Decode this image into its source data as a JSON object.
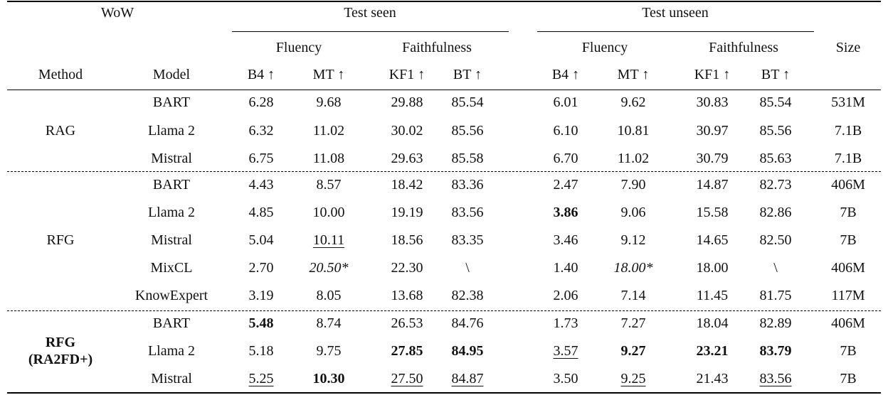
{
  "header": {
    "dataset": "WoW",
    "test_seen": "Test seen",
    "test_unseen": "Test unseen",
    "fluency": "Fluency",
    "faithfulness": "Faithfulness",
    "size": "Size",
    "method": "Method",
    "model": "Model",
    "metrics": [
      "B4 ↑",
      "MT ↑",
      "KF1 ↑",
      "BT ↑",
      "B4 ↑",
      "MT ↑",
      "KF1 ↑",
      "BT ↑"
    ]
  },
  "groups": [
    {
      "method": "RAG",
      "method_lines": [
        "RAG"
      ],
      "method_bold": false,
      "rows": [
        {
          "model": "BART",
          "values": [
            "6.28",
            "9.68",
            "29.88",
            "85.54",
            "6.01",
            "9.62",
            "30.83",
            "85.54"
          ],
          "size": "531M"
        },
        {
          "model": "Llama 2",
          "values": [
            "6.32",
            "11.02",
            "30.02",
            "85.56",
            "6.10",
            "10.81",
            "30.97",
            "85.56"
          ],
          "size": "7.1B"
        },
        {
          "model": "Mistral",
          "values": [
            "6.75",
            "11.08",
            "29.63",
            "85.58",
            "6.70",
            "11.02",
            "30.79",
            "85.63"
          ],
          "size": "7.1B"
        }
      ]
    },
    {
      "method": "RFG",
      "method_lines": [
        "RFG"
      ],
      "method_bold": false,
      "rows": [
        {
          "model": "BART",
          "values": [
            "4.43",
            "8.57",
            "18.42",
            "83.36",
            "2.47",
            "7.90",
            "14.87",
            "82.73"
          ],
          "size": "406M"
        },
        {
          "model": "Llama 2",
          "values": [
            "4.85",
            "10.00",
            "19.19",
            "83.56",
            "3.86",
            "9.06",
            "15.58",
            "82.86"
          ],
          "size": "7B"
        },
        {
          "model": "Mistral",
          "values": [
            "5.04",
            "10.11",
            "18.56",
            "83.35",
            "3.46",
            "9.12",
            "14.65",
            "82.50"
          ],
          "size": "7B"
        },
        {
          "model": "MixCL",
          "values": [
            "2.70",
            "20.50*",
            "22.30",
            "\\",
            "1.40",
            "18.00*",
            "18.00",
            "\\"
          ],
          "size": "406M"
        },
        {
          "model": "KnowExpert",
          "values": [
            "3.19",
            "8.05",
            "13.68",
            "82.38",
            "2.06",
            "7.14",
            "11.45",
            "81.75"
          ],
          "size": "117M"
        }
      ]
    },
    {
      "method": "RFG (RA2FD+)",
      "method_lines": [
        "RFG",
        "(RA2FD+)"
      ],
      "method_bold": true,
      "rows": [
        {
          "model": "BART",
          "values": [
            "5.48",
            "8.74",
            "26.53",
            "84.76",
            "1.73",
            "7.27",
            "18.04",
            "82.89"
          ],
          "size": "406M"
        },
        {
          "model": "Llama 2",
          "values": [
            "5.18",
            "9.75",
            "27.85",
            "84.95",
            "3.57",
            "9.27",
            "23.21",
            "83.79"
          ],
          "size": "7B"
        },
        {
          "model": "Mistral",
          "values": [
            "5.25",
            "10.30",
            "27.50",
            "84.87",
            "3.50",
            "9.25",
            "21.43",
            "83.56"
          ],
          "size": "7B"
        }
      ]
    }
  ],
  "emphasis": {
    "bold": [
      "1.1.4",
      "2.0.0",
      "2.1.2",
      "2.1.3",
      "2.1.5",
      "2.1.6",
      "2.1.7",
      "2.2.1"
    ],
    "underline": [
      "1.2.1",
      "2.1.4",
      "2.2.0",
      "2.2.2",
      "2.2.3",
      "2.2.5",
      "2.2.7"
    ],
    "italic": [
      "1.3.1",
      "1.3.5"
    ]
  }
}
